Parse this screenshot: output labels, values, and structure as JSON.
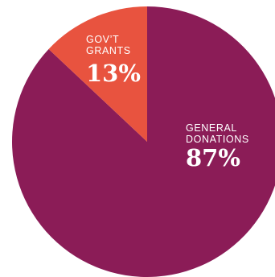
{
  "chart_data": {
    "type": "pie",
    "slices": [
      {
        "label_lines": [
          "GENERAL",
          "DONATIONS"
        ],
        "value": 87,
        "value_label": "87%",
        "color": "#8b1c57"
      },
      {
        "label_lines": [
          "GOV’T",
          "GRANTS"
        ],
        "value": 13,
        "value_label": "13%",
        "color": "#e8533f"
      }
    ],
    "unit": "%",
    "start": "top",
    "direction": "clockwise",
    "legend": "none"
  }
}
